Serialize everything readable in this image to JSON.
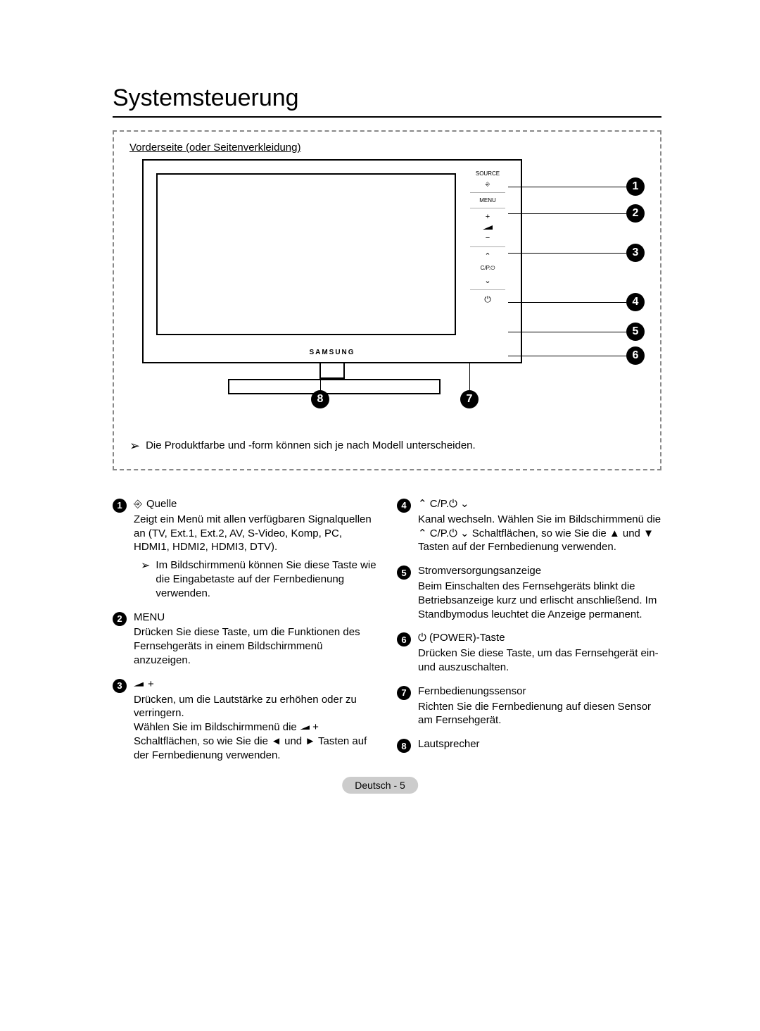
{
  "title": "Systemsteuerung",
  "subhead": "Vorderseite (oder Seitenverkleidung)",
  "brand": "SAMSUNG",
  "diagram": {
    "panel_labels": {
      "source": "SOURCE",
      "menu": "MENU",
      "plus": "+",
      "minus": "−",
      "cp": "C/P.⏻",
      "up": "⌃",
      "down": "⌄",
      "power": "⏻"
    },
    "callout_nums": [
      "1",
      "2",
      "3",
      "4",
      "5",
      "6",
      "7",
      "8"
    ],
    "note": "Die Produktfarbe und -form können sich je nach Modell unterscheiden."
  },
  "left": [
    {
      "n": "1",
      "title_pre_icon": "source",
      "title": "Quelle",
      "body": "Zeigt ein Menü mit allen verfügbaren Signalquellen an (TV, Ext.1, Ext.2, AV, S-Video, Komp, PC, HDMI1, HDMI2, HDMI3, DTV).",
      "sub": "Im Bildschirmmenü können Sie diese Taste wie die Eingabetaste auf der Fernbedienung verwenden."
    },
    {
      "n": "2",
      "title": "MENU",
      "body": "Drücken Sie diese Taste, um die Funktionen des Fernsehgeräts in einem Bildschirmmenü anzuzeigen."
    },
    {
      "n": "3",
      "title_icon": "vol",
      "body": "Drücken, um die Lautstärke zu erhöhen oder zu verringern.",
      "body2_pre": "Wählen Sie im Bildschirmmenü die ",
      "body2_mid_icon": "vol",
      "body2_post": " Schaltflächen, so wie Sie die ◄ und ► Tasten auf der Fernbedienung verwenden."
    }
  ],
  "right": [
    {
      "n": "4",
      "title_sym": "⌃ C/P.⏻ ⌄",
      "body_pre": "Kanal wechseln. Wählen Sie im Bildschirmmenü die ",
      "body_mid_sym": "⌃ C/P.⏻ ⌄",
      "body_post": " Schaltflächen, so wie Sie die ▲ und ▼ Tasten auf der Fernbedienung verwenden."
    },
    {
      "n": "5",
      "title": "Stromversorgungsanzeige",
      "body": "Beim Einschalten des Fernsehgeräts blinkt die Betriebsanzeige kurz und erlischt anschließend. Im Standbymodus leuchtet die Anzeige permanent."
    },
    {
      "n": "6",
      "title_sym": "⏻ (POWER)-Taste",
      "body": "Drücken Sie diese Taste, um das Fernsehgerät ein- und auszuschalten."
    },
    {
      "n": "7",
      "title": "Fernbedienungssensor",
      "body": "Richten Sie die Fernbedienung auf diesen Sensor am Fernsehgerät."
    },
    {
      "n": "8",
      "title": "Lautsprecher",
      "body": ""
    }
  ],
  "footer": "Deutsch - 5",
  "colors": {
    "text": "#000000",
    "dash": "#888888",
    "footer_bg": "#cccccc"
  }
}
